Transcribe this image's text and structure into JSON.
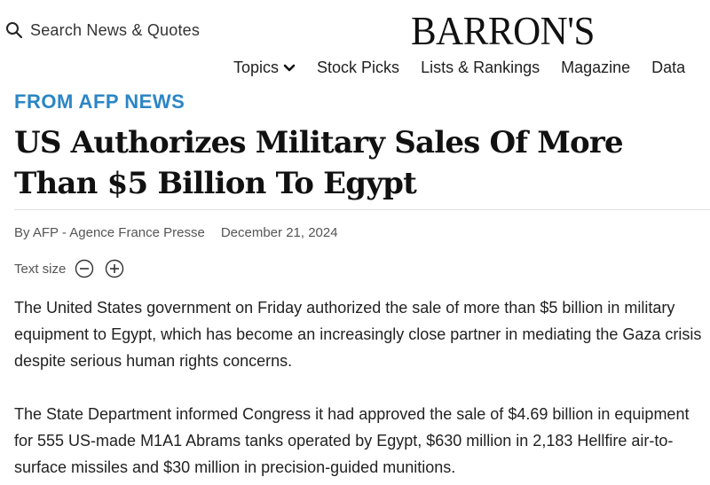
{
  "header": {
    "search_label": "Search News & Quotes",
    "logo_text": "BARRON'S",
    "nav": [
      {
        "label": "Topics",
        "has_dropdown": true
      },
      {
        "label": "Stock Picks"
      },
      {
        "label": "Lists & Rankings"
      },
      {
        "label": "Magazine"
      },
      {
        "label": "Data"
      }
    ]
  },
  "article": {
    "kicker": "FROM AFP NEWS",
    "headline": "US Authorizes Military Sales Of More Than $5 Billion To Egypt",
    "byline": "By AFP - Agence France Presse",
    "date": "December 21, 2024",
    "text_size_label": "Text size",
    "paragraphs": [
      "The United States government on Friday authorized the sale of more than $5 billion in military equipment to Egypt, which has become an increasingly close partner in mediating the Gaza crisis despite serious human rights concerns.",
      "The State Department informed Congress it had approved the sale of $4.69 billion in equipment for 555 US-made M1A1 Abrams tanks operated by Egypt, $630 million in 2,183 Hellfire air-to-surface missiles and $30 million in precision-guided munitions."
    ]
  },
  "colors": {
    "kicker": "#2b86c5",
    "text": "#222222",
    "meta": "#555555"
  },
  "icons": {
    "search": "magnifier-icon",
    "dropdown": "chevron-down-icon",
    "decrease": "minus-circle-icon",
    "increase": "plus-circle-icon"
  }
}
